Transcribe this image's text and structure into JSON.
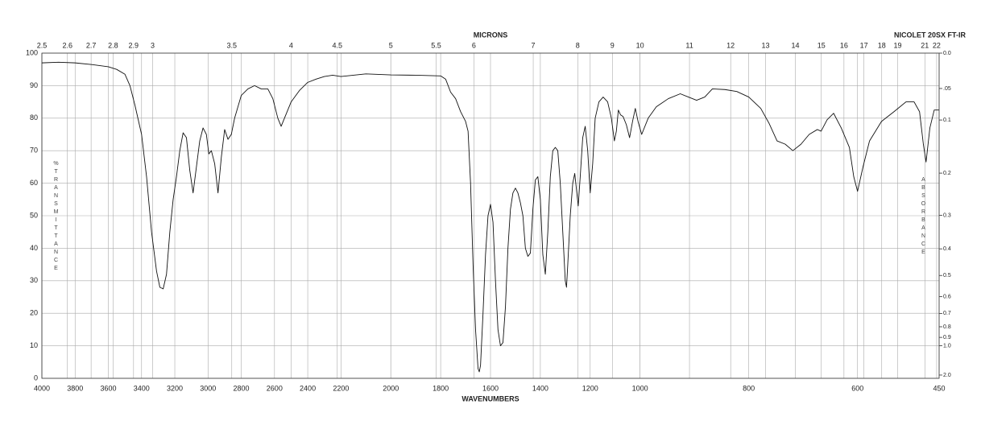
{
  "chart_data": {
    "type": "line",
    "title": "NICOLET 20SX FT-IR",
    "x_label": "WAVENUMBERS",
    "x2_label": "MICRONS",
    "y_label": "%TRANSMITTANCE",
    "y2_label": "ABSORBANCE",
    "xlim": [
      4000,
      450
    ],
    "xticks": [
      4000,
      3800,
      3600,
      3400,
      3200,
      3000,
      2800,
      2600,
      2400,
      2200,
      2000,
      1800,
      1600,
      1400,
      1200,
      1000,
      800,
      600,
      450
    ],
    "x2ticks": [
      2.5,
      2.6,
      2.7,
      2.8,
      2.9,
      3,
      3.5,
      4,
      4.5,
      5,
      5.5,
      6,
      7,
      8,
      9,
      10,
      11,
      12,
      13,
      14,
      15,
      16,
      17,
      18,
      19,
      21,
      22
    ],
    "ylim": [
      0,
      100
    ],
    "yticks": [
      0,
      10,
      20,
      30,
      40,
      50,
      60,
      70,
      80,
      90,
      100
    ],
    "y2ticks": [
      {
        "value": 0,
        "label": "0.0"
      },
      {
        "value": 0.05,
        "label": ".05"
      },
      0.1,
      0.2,
      0.3,
      0.4,
      0.5,
      0.6,
      0.7,
      0.8,
      0.9,
      {
        "value": 1,
        "label": "1.0"
      },
      {
        "value": 2,
        "label": "2.0"
      }
    ],
    "grid": true,
    "color": "#111111",
    "x": [
      4000,
      3900,
      3800,
      3700,
      3600,
      3550,
      3500,
      3470,
      3440,
      3400,
      3370,
      3340,
      3310,
      3290,
      3270,
      3250,
      3230,
      3210,
      3190,
      3170,
      3150,
      3130,
      3110,
      3090,
      3070,
      3050,
      3030,
      3010,
      2995,
      2980,
      2960,
      2940,
      2920,
      2900,
      2880,
      2860,
      2840,
      2800,
      2760,
      2720,
      2680,
      2640,
      2610,
      2580,
      2560,
      2540,
      2500,
      2450,
      2400,
      2350,
      2300,
      2250,
      2200,
      2100,
      2000,
      1900,
      1800,
      1780,
      1760,
      1740,
      1720,
      1700,
      1690,
      1680,
      1670,
      1660,
      1650,
      1645,
      1640,
      1630,
      1620,
      1610,
      1600,
      1590,
      1580,
      1570,
      1560,
      1550,
      1540,
      1530,
      1520,
      1510,
      1500,
      1490,
      1480,
      1470,
      1460,
      1450,
      1440,
      1430,
      1420,
      1410,
      1400,
      1390,
      1380,
      1370,
      1360,
      1350,
      1340,
      1330,
      1320,
      1310,
      1300,
      1295,
      1290,
      1280,
      1270,
      1262,
      1255,
      1248,
      1240,
      1230,
      1220,
      1210,
      1200,
      1190,
      1180,
      1165,
      1148,
      1130,
      1115,
      1103,
      1095,
      1087,
      1078,
      1068,
      1055,
      1042,
      1030,
      1019,
      1008,
      997,
      985,
      970,
      948,
      926,
      911,
      896,
      881,
      867,
      844,
      822,
      800,
      778,
      763,
      748,
      733,
      719,
      704,
      689,
      674,
      667,
      656,
      644,
      630,
      615,
      607,
      600,
      590,
      578,
      556,
      533,
      511,
      496,
      486,
      479,
      474,
      467,
      459,
      450
    ],
    "values": [
      97,
      97.2,
      97,
      96.5,
      95.8,
      95,
      93.5,
      90,
      84,
      75,
      62,
      45,
      33,
      28,
      27.5,
      32,
      45,
      55,
      62,
      70,
      75.5,
      74,
      64,
      57,
      65,
      73,
      77,
      75,
      69,
      70,
      66,
      57,
      68,
      76.5,
      73.5,
      75,
      80,
      87,
      89,
      90,
      89,
      89,
      86,
      80,
      77.5,
      80,
      85,
      88.5,
      91,
      92,
      92.8,
      93.2,
      92.8,
      93.6,
      93.3,
      93.2,
      93,
      92,
      88,
      86,
      82,
      79,
      76,
      60,
      35,
      15,
      3,
      2,
      4,
      20,
      38,
      50,
      53.5,
      48,
      30,
      15,
      10,
      11,
      22,
      40,
      52,
      57,
      58.5,
      57,
      54,
      50,
      40,
      37.5,
      38.5,
      52,
      61,
      62,
      55,
      38,
      32,
      45,
      62,
      70,
      71,
      70,
      60,
      45,
      30,
      28,
      35,
      50,
      60,
      63,
      58,
      53,
      62,
      74,
      77.5,
      70,
      57,
      66,
      80,
      85,
      86.5,
      85,
      80,
      73,
      76,
      82.5,
      81,
      80.5,
      78,
      74,
      79,
      83,
      79,
      75,
      80,
      83.5,
      86,
      87.5,
      86.5,
      85.5,
      86.5,
      89,
      88.8,
      88.2,
      86.5,
      83,
      78.5,
      73,
      72,
      70,
      72,
      75,
      76.5,
      76,
      79.5,
      81.5,
      77,
      71,
      62,
      57.5,
      65,
      73,
      79,
      82,
      85,
      85,
      82,
      72,
      66.5,
      77,
      82.5,
      82.5
    ]
  }
}
